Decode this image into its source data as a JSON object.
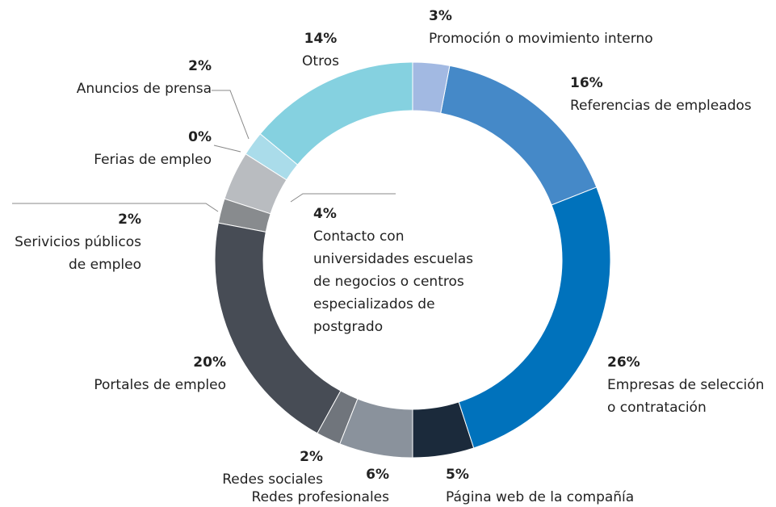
{
  "chart_data": {
    "type": "donut",
    "categories": [
      "Promoción o movimiento interno",
      "Referencias de empleados",
      "Empresas de selección\no contratación",
      "Página web de la compañía",
      "Redes profesionales",
      "Redes sociales",
      "Portales de empleo",
      "Serivicios públicos\nde empleo",
      "Contacto con\nuniversidades escuelas\nde negocios o centros\nespecializados de\npostgrado",
      "Ferias de empleo",
      "Anuncios de prensa",
      "Otros"
    ],
    "values": [
      3,
      16,
      26,
      5,
      6,
      2,
      20,
      2,
      4,
      0,
      2,
      14
    ],
    "value_labels": [
      "3%",
      "16%",
      "26%",
      "5%",
      "6%",
      "2%",
      "20%",
      "2%",
      "4%",
      "0%",
      "2%",
      "14%"
    ],
    "colors": [
      "#a2b9e2",
      "#4589c8",
      "#0072bc",
      "#1b2a3b",
      "#8a929c",
      "#70757c",
      "#474c55",
      "#888b8e",
      "#b9bcc0",
      "#d6e6f0",
      "#aadcea",
      "#85d1e0"
    ]
  }
}
